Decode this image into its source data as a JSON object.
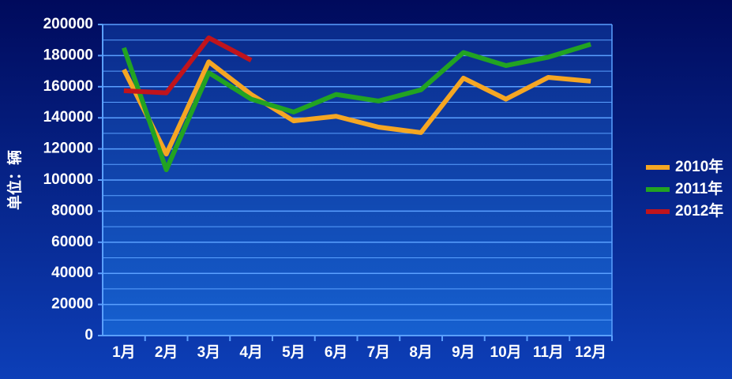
{
  "chart_data": {
    "type": "line",
    "y_label": "单位：辆",
    "categories": [
      "1月",
      "2月",
      "3月",
      "4月",
      "5月",
      "6月",
      "7月",
      "8月",
      "9月",
      "10月",
      "11月",
      "12月"
    ],
    "series": [
      {
        "name": "2010年",
        "color": "#f5a623",
        "values": [
          171000,
          116700,
          176000,
          155000,
          138000,
          141000,
          134000,
          130500,
          165500,
          152000,
          166000,
          163500
        ]
      },
      {
        "name": "2011年",
        "color": "#22a322",
        "values": [
          185000,
          106600,
          169000,
          152000,
          143700,
          155000,
          150800,
          158000,
          182000,
          173600,
          179000,
          187300
        ]
      },
      {
        "name": "2012年",
        "color": "#c0141c",
        "values": [
          157400,
          156000,
          191400,
          177000,
          null,
          null,
          null,
          null,
          null,
          null,
          null,
          null
        ]
      }
    ],
    "ylim": [
      0,
      200000
    ],
    "yticks": [
      0,
      20000,
      40000,
      60000,
      80000,
      100000,
      120000,
      140000,
      160000,
      180000,
      200000
    ],
    "minor_yticks": [
      10000,
      30000,
      50000,
      70000,
      90000,
      110000,
      130000,
      150000,
      170000,
      190000
    ],
    "grid": true,
    "legend": "right"
  }
}
